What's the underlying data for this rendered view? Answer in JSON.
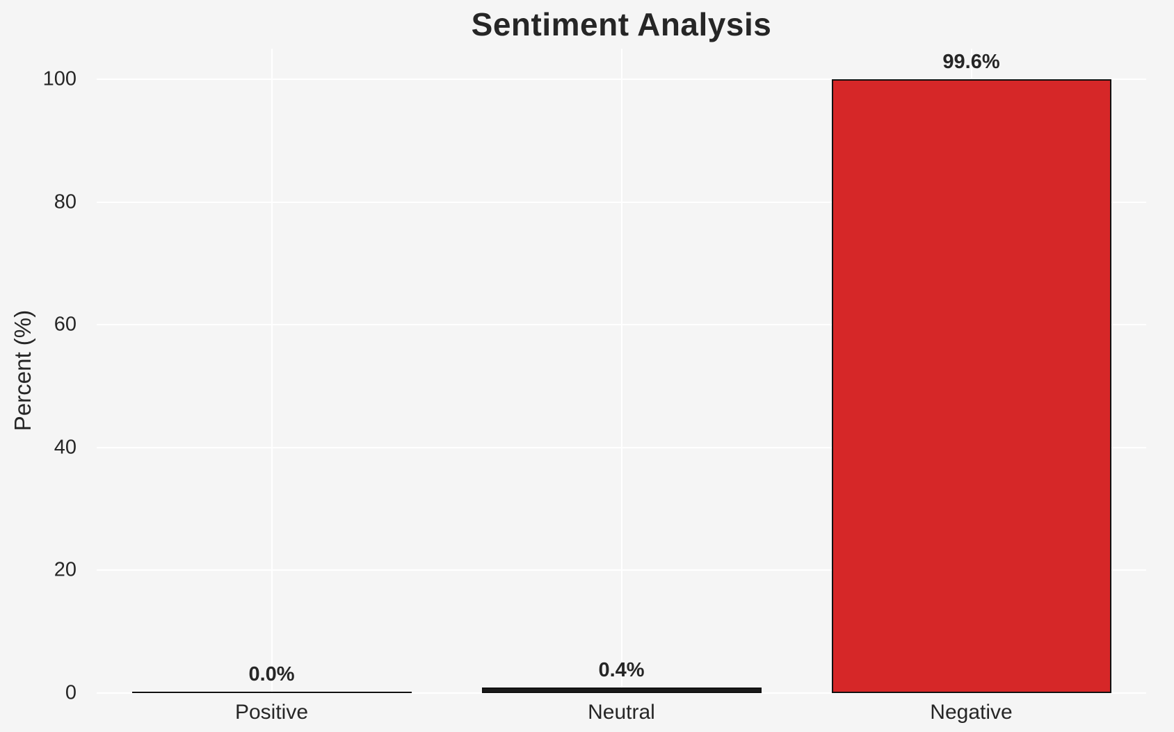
{
  "chart_data": {
    "type": "bar",
    "title": "Sentiment Analysis",
    "ylabel": "Percent (%)",
    "xlabel": "",
    "categories": [
      "Positive",
      "Neutral",
      "Negative"
    ],
    "values": [
      0.0,
      0.4,
      99.6
    ],
    "value_labels": [
      "0.0%",
      "0.4%",
      "99.6%"
    ],
    "bar_colors": [
      "#2b2b2b",
      "#1a1a1a",
      "#d62728"
    ],
    "bar_edge_color": "#111111",
    "yticks": [
      0,
      20,
      40,
      60,
      80,
      100
    ],
    "ylim": [
      0,
      105
    ],
    "grid": true,
    "grid_color": "#ffffff",
    "background_color": "#f5f5f5",
    "text_color": "#262626",
    "legend_position": "none"
  }
}
